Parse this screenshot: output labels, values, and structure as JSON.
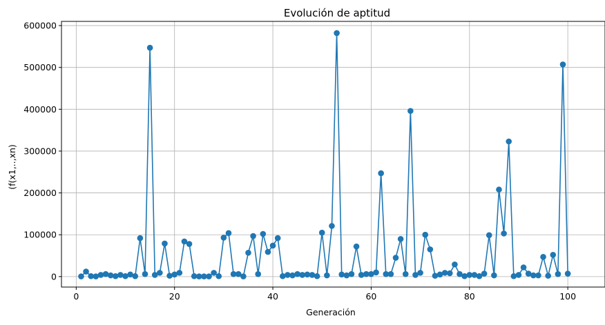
{
  "chart_data": {
    "type": "line",
    "title": "Evolución de aptitud",
    "xlabel": "Generación",
    "ylabel": "(f(x1,..,xn)",
    "xlim": [
      -3,
      104
    ],
    "ylim": [
      -25000,
      610000
    ],
    "xticks": [
      0,
      20,
      40,
      60,
      80,
      100
    ],
    "yticks": [
      0,
      100000,
      200000,
      300000,
      400000,
      500000,
      600000
    ],
    "grid": true,
    "color": "#1f77b4",
    "marker": "circle",
    "series": [
      {
        "x": [
          1,
          2,
          3,
          4,
          5,
          6,
          7,
          8,
          9,
          10,
          11,
          12,
          13,
          14,
          15,
          16,
          17,
          18,
          19,
          20,
          21,
          22,
          23,
          24,
          25,
          26,
          27,
          28,
          29,
          30,
          31,
          32,
          33,
          34,
          35,
          36,
          37,
          38,
          39,
          40,
          41,
          42,
          43,
          44,
          45,
          46,
          47,
          48,
          49,
          50,
          51,
          52,
          53,
          54,
          55,
          56,
          57,
          58,
          59,
          60,
          61,
          62,
          63,
          64,
          65,
          66,
          67,
          68,
          69,
          70,
          71,
          72,
          73,
          74,
          75,
          76,
          77,
          78,
          79,
          80,
          81,
          82,
          83,
          84,
          85,
          86,
          87,
          88,
          89,
          90,
          91,
          92,
          93,
          94,
          95,
          96,
          97,
          98,
          99,
          100
        ],
        "values": [
          500,
          12000,
          1000,
          500,
          4000,
          6000,
          3000,
          1000,
          4000,
          1000,
          5000,
          1000,
          92000,
          6000,
          547000,
          4000,
          9000,
          79000,
          2000,
          5000,
          9000,
          84000,
          78000,
          1000,
          500,
          500,
          500,
          9000,
          1000,
          93000,
          104000,
          6000,
          6000,
          500,
          57000,
          97000,
          6000,
          102000,
          59000,
          74000,
          92000,
          1000,
          4000,
          3000,
          6000,
          4000,
          5000,
          4000,
          1000,
          105000,
          3000,
          121000,
          582000,
          5000,
          3000,
          6000,
          72000,
          4000,
          6000,
          6000,
          10000,
          247000,
          6000,
          6000,
          45000,
          90000,
          6000,
          396000,
          4000,
          9000,
          100000,
          65000,
          2000,
          5000,
          9000,
          8000,
          29000,
          6000,
          1000,
          4000,
          4000,
          1000,
          7000,
          99000,
          3000,
          208000,
          103000,
          323000,
          1000,
          4000,
          22000,
          7000,
          3000,
          3000,
          47000,
          2000,
          52000,
          6000,
          507000,
          7000
        ]
      }
    ]
  }
}
